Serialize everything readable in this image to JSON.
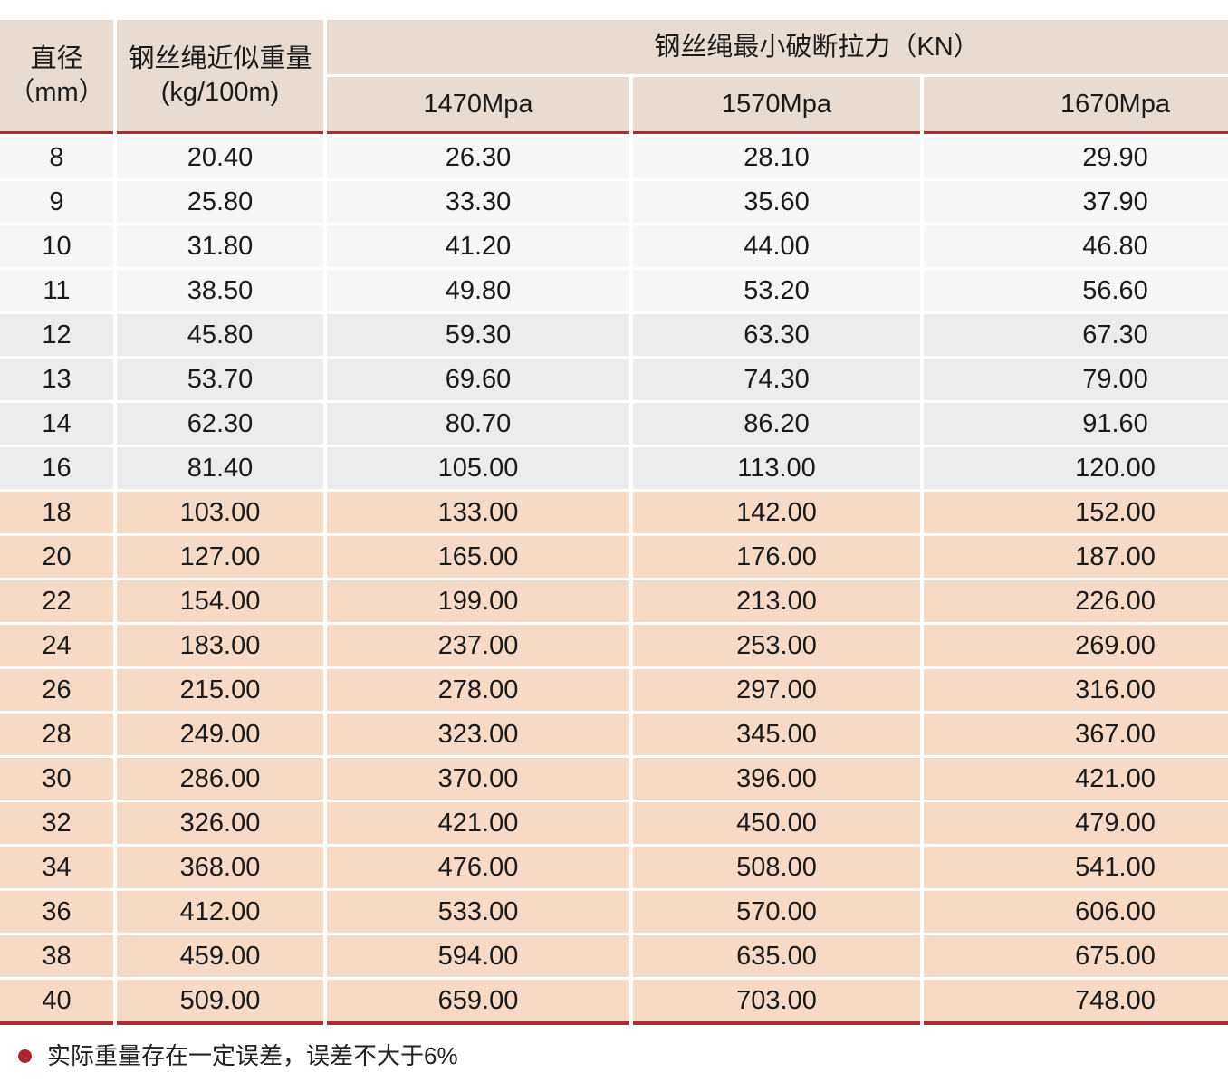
{
  "table": {
    "col1_header_line1": "直径",
    "col1_header_line2": "（mm）",
    "col2_header_line1": "钢丝绳近似重量",
    "col2_header_line2": "(kg/100m)",
    "span_header": "钢丝绳最小破断拉力（KN）",
    "sub_headers": [
      "1470Mpa",
      "1570Mpa",
      "1670Mpa"
    ],
    "rows": [
      {
        "diameter": "8",
        "weight": "20.40",
        "kn_1470": "26.30",
        "kn_1570": "28.10",
        "kn_1670": "29.90",
        "band": "a"
      },
      {
        "diameter": "9",
        "weight": "25.80",
        "kn_1470": "33.30",
        "kn_1570": "35.60",
        "kn_1670": "37.90",
        "band": "a"
      },
      {
        "diameter": "10",
        "weight": "31.80",
        "kn_1470": "41.20",
        "kn_1570": "44.00",
        "kn_1670": "46.80",
        "band": "a"
      },
      {
        "diameter": "11",
        "weight": "38.50",
        "kn_1470": "49.80",
        "kn_1570": "53.20",
        "kn_1670": "56.60",
        "band": "a"
      },
      {
        "diameter": "12",
        "weight": "45.80",
        "kn_1470": "59.30",
        "kn_1570": "63.30",
        "kn_1670": "67.30",
        "band": "b"
      },
      {
        "diameter": "13",
        "weight": "53.70",
        "kn_1470": "69.60",
        "kn_1570": "74.30",
        "kn_1670": "79.00",
        "band": "b"
      },
      {
        "diameter": "14",
        "weight": "62.30",
        "kn_1470": "80.70",
        "kn_1570": "86.20",
        "kn_1670": "91.60",
        "band": "b"
      },
      {
        "diameter": "16",
        "weight": "81.40",
        "kn_1470": "105.00",
        "kn_1570": "113.00",
        "kn_1670": "120.00",
        "band": "b"
      },
      {
        "diameter": "18",
        "weight": "103.00",
        "kn_1470": "133.00",
        "kn_1570": "142.00",
        "kn_1670": "152.00",
        "band": "p"
      },
      {
        "diameter": "20",
        "weight": "127.00",
        "kn_1470": "165.00",
        "kn_1570": "176.00",
        "kn_1670": "187.00",
        "band": "p"
      },
      {
        "diameter": "22",
        "weight": "154.00",
        "kn_1470": "199.00",
        "kn_1570": "213.00",
        "kn_1670": "226.00",
        "band": "p"
      },
      {
        "diameter": "24",
        "weight": "183.00",
        "kn_1470": "237.00",
        "kn_1570": "253.00",
        "kn_1670": "269.00",
        "band": "p"
      },
      {
        "diameter": "26",
        "weight": "215.00",
        "kn_1470": "278.00",
        "kn_1570": "297.00",
        "kn_1670": "316.00",
        "band": "p"
      },
      {
        "diameter": "28",
        "weight": "249.00",
        "kn_1470": "323.00",
        "kn_1570": "345.00",
        "kn_1670": "367.00",
        "band": "p"
      },
      {
        "diameter": "30",
        "weight": "286.00",
        "kn_1470": "370.00",
        "kn_1570": "396.00",
        "kn_1670": "421.00",
        "band": "p"
      },
      {
        "diameter": "32",
        "weight": "326.00",
        "kn_1470": "421.00",
        "kn_1570": "450.00",
        "kn_1670": "479.00",
        "band": "p"
      },
      {
        "diameter": "34",
        "weight": "368.00",
        "kn_1470": "476.00",
        "kn_1570": "508.00",
        "kn_1670": "541.00",
        "band": "p"
      },
      {
        "diameter": "36",
        "weight": "412.00",
        "kn_1470": "533.00",
        "kn_1570": "570.00",
        "kn_1670": "606.00",
        "band": "p"
      },
      {
        "diameter": "38",
        "weight": "459.00",
        "kn_1470": "594.00",
        "kn_1570": "635.00",
        "kn_1670": "675.00",
        "band": "p"
      },
      {
        "diameter": "40",
        "weight": "509.00",
        "kn_1470": "659.00",
        "kn_1570": "703.00",
        "kn_1670": "748.00",
        "band": "p"
      }
    ]
  },
  "footnote": {
    "text": "实际重量存在一定误差，误差不大于6%"
  },
  "colors": {
    "accent_red": "#a62f36",
    "bullet_red": "#a8262c",
    "header_bg": "#e8dbd1",
    "gray_row_light": "#f6f6f6",
    "gray_row_dark": "#ececec",
    "pink_row": "#f7dac6"
  }
}
